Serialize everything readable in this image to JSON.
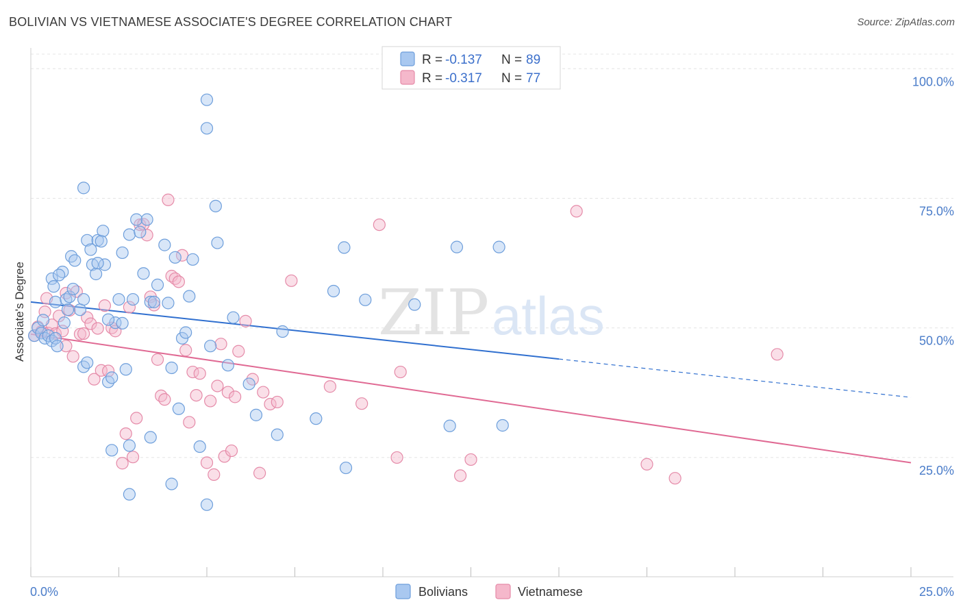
{
  "header": {
    "title": "BOLIVIAN VS VIETNAMESE ASSOCIATE'S DEGREE CORRELATION CHART",
    "source": "Source: ZipAtlas.com"
  },
  "watermark": {
    "zip": "ZIP",
    "atlas": "atlas"
  },
  "colors": {
    "bolivians_fill": "#a9c8f0",
    "bolivians_stroke": "#6d9edb",
    "bolivians_line": "#2f6fcf",
    "vietnamese_fill": "#f5b8cb",
    "vietnamese_stroke": "#e58aa8",
    "vietnamese_line": "#e06993",
    "axis_label": "#4a7cc9"
  },
  "legend": {
    "rows": [
      {
        "r_label": "R = ",
        "r_value": "-0.137",
        "n_label": "N = ",
        "n_value": "89"
      },
      {
        "r_label": "R = ",
        "r_value": "-0.317",
        "n_label": "N = ",
        "n_value": "77"
      }
    ]
  },
  "bottom_legend": {
    "items": [
      "Bolivians",
      "Vietnamese"
    ]
  },
  "chart_data": {
    "type": "scatter",
    "title": "BOLIVIAN VS VIETNAMESE ASSOCIATE'S DEGREE CORRELATION CHART",
    "xlabel": "",
    "ylabel": "Associate's Degree",
    "xlim": [
      0,
      25
    ],
    "ylim": [
      2,
      104
    ],
    "x_tick_labels": [
      "0.0%",
      "25.0%"
    ],
    "y_ticks": [
      25,
      50,
      75,
      100
    ],
    "y_tick_labels": [
      "25.0%",
      "50.0%",
      "75.0%",
      "100.0%"
    ],
    "grid": true,
    "legend_position": "top-center",
    "series": [
      {
        "name": "Bolivians",
        "r": -0.137,
        "n": 89,
        "trend": {
          "x0": 0,
          "y0": 55.0,
          "x1": 15.0,
          "y1": 44.0,
          "dash_x1": 25.0,
          "dash_y1": 36.6
        },
        "points": [
          [
            0.1,
            48.5
          ],
          [
            0.2,
            50.0
          ],
          [
            0.3,
            49.0
          ],
          [
            0.4,
            48.0
          ],
          [
            0.5,
            48.5
          ],
          [
            0.6,
            47.5
          ],
          [
            0.7,
            48.0
          ],
          [
            0.35,
            51.5
          ],
          [
            0.6,
            59.5
          ],
          [
            0.65,
            58.0
          ],
          [
            0.9,
            60.8
          ],
          [
            0.8,
            60.2
          ],
          [
            0.75,
            46.5
          ],
          [
            0.7,
            55.0
          ],
          [
            0.95,
            51.0
          ],
          [
            1.0,
            55.5
          ],
          [
            1.05,
            53.5
          ],
          [
            1.1,
            56.0
          ],
          [
            1.2,
            57.5
          ],
          [
            1.15,
            63.8
          ],
          [
            1.25,
            63.0
          ],
          [
            1.4,
            53.5
          ],
          [
            1.5,
            55.5
          ],
          [
            1.6,
            66.9
          ],
          [
            1.7,
            65.1
          ],
          [
            1.75,
            62.2
          ],
          [
            1.85,
            60.4
          ],
          [
            1.9,
            66.9
          ],
          [
            2.05,
            68.7
          ],
          [
            2.0,
            66.7
          ],
          [
            2.1,
            62.2
          ],
          [
            2.6,
            64.5
          ],
          [
            2.2,
            39.6
          ],
          [
            2.3,
            40.4
          ],
          [
            2.4,
            51.0
          ],
          [
            2.5,
            55.5
          ],
          [
            2.6,
            50.9
          ],
          [
            2.7,
            42.0
          ],
          [
            2.8,
            68.0
          ],
          [
            2.9,
            55.5
          ],
          [
            3.0,
            70.9
          ],
          [
            3.1,
            68.5
          ],
          [
            3.2,
            60.5
          ],
          [
            3.3,
            70.9
          ],
          [
            3.4,
            55.0
          ],
          [
            3.5,
            55.0
          ],
          [
            3.6,
            58.3
          ],
          [
            3.8,
            66.0
          ],
          [
            3.9,
            54.8
          ],
          [
            4.0,
            42.3
          ],
          [
            4.1,
            63.6
          ],
          [
            4.2,
            34.4
          ],
          [
            4.3,
            48.0
          ],
          [
            4.4,
            49.1
          ],
          [
            4.5,
            56.1
          ],
          [
            4.6,
            63.2
          ],
          [
            4.8,
            27.1
          ],
          [
            5.0,
            88.5
          ],
          [
            5.1,
            46.5
          ],
          [
            5.25,
            73.5
          ],
          [
            5.3,
            66.4
          ],
          [
            5.6,
            42.8
          ],
          [
            5.75,
            52.0
          ],
          [
            6.2,
            39.2
          ],
          [
            6.4,
            33.2
          ],
          [
            7.0,
            29.4
          ],
          [
            7.15,
            49.3
          ],
          [
            8.1,
            32.5
          ],
          [
            8.6,
            57.1
          ],
          [
            8.9,
            65.5
          ],
          [
            8.95,
            23.0
          ],
          [
            9.5,
            55.4
          ],
          [
            10.9,
            54.5
          ],
          [
            11.9,
            31.1
          ],
          [
            12.1,
            65.6
          ],
          [
            13.3,
            65.6
          ],
          [
            13.4,
            31.2
          ],
          [
            4.0,
            19.9
          ],
          [
            5.0,
            15.9
          ],
          [
            2.8,
            17.9
          ],
          [
            2.8,
            27.3
          ],
          [
            2.3,
            26.4
          ],
          [
            3.4,
            28.9
          ],
          [
            1.5,
            42.5
          ],
          [
            1.6,
            43.3
          ],
          [
            1.9,
            62.5
          ],
          [
            2.2,
            51.6
          ],
          [
            5.0,
            94.0
          ],
          [
            1.5,
            77.0
          ]
        ]
      },
      {
        "name": "Vietnamese",
        "r": -0.317,
        "n": 77,
        "trend": {
          "x0": 0,
          "y0": 48.8,
          "x1": 25.0,
          "y1": 24.0
        },
        "points": [
          [
            0.1,
            48.5
          ],
          [
            0.2,
            50.2
          ],
          [
            0.3,
            49.3
          ],
          [
            0.4,
            53.1
          ],
          [
            0.45,
            55.7
          ],
          [
            0.5,
            49.0
          ],
          [
            0.6,
            50.6
          ],
          [
            0.7,
            48.9
          ],
          [
            0.8,
            52.3
          ],
          [
            0.9,
            49.4
          ],
          [
            1.0,
            56.7
          ],
          [
            1.1,
            53.4
          ],
          [
            1.2,
            44.5
          ],
          [
            1.3,
            57.0
          ],
          [
            1.4,
            48.8
          ],
          [
            1.5,
            48.9
          ],
          [
            1.6,
            52.0
          ],
          [
            1.7,
            50.8
          ],
          [
            1.8,
            40.1
          ],
          [
            1.9,
            49.9
          ],
          [
            2.0,
            41.8
          ],
          [
            2.1,
            54.3
          ],
          [
            2.2,
            41.7
          ],
          [
            2.3,
            50.0
          ],
          [
            2.4,
            49.4
          ],
          [
            2.6,
            23.9
          ],
          [
            2.7,
            29.6
          ],
          [
            2.8,
            54.0
          ],
          [
            2.9,
            25.1
          ],
          [
            3.0,
            32.6
          ],
          [
            3.1,
            69.9
          ],
          [
            3.2,
            70.0
          ],
          [
            3.3,
            67.9
          ],
          [
            3.4,
            56.0
          ],
          [
            3.5,
            54.4
          ],
          [
            3.6,
            43.9
          ],
          [
            3.7,
            36.9
          ],
          [
            3.8,
            36.2
          ],
          [
            3.9,
            74.7
          ],
          [
            4.0,
            60.0
          ],
          [
            4.1,
            59.5
          ],
          [
            4.2,
            58.9
          ],
          [
            4.3,
            64.0
          ],
          [
            4.4,
            45.7
          ],
          [
            4.5,
            31.8
          ],
          [
            4.6,
            41.5
          ],
          [
            4.7,
            37.0
          ],
          [
            4.8,
            41.2
          ],
          [
            5.0,
            24.0
          ],
          [
            5.1,
            35.9
          ],
          [
            5.2,
            21.7
          ],
          [
            5.3,
            38.8
          ],
          [
            5.4,
            46.9
          ],
          [
            5.5,
            25.2
          ],
          [
            5.6,
            37.6
          ],
          [
            5.7,
            26.3
          ],
          [
            5.8,
            36.7
          ],
          [
            5.9,
            45.5
          ],
          [
            6.1,
            51.3
          ],
          [
            6.3,
            40.1
          ],
          [
            6.5,
            22.0
          ],
          [
            6.6,
            37.6
          ],
          [
            6.8,
            35.3
          ],
          [
            7.0,
            35.7
          ],
          [
            7.4,
            59.1
          ],
          [
            8.5,
            38.7
          ],
          [
            9.4,
            35.4
          ],
          [
            9.9,
            69.9
          ],
          [
            10.4,
            25.0
          ],
          [
            10.5,
            41.5
          ],
          [
            12.2,
            21.5
          ],
          [
            12.5,
            24.6
          ],
          [
            15.5,
            72.5
          ],
          [
            17.5,
            23.7
          ],
          [
            18.3,
            21.0
          ],
          [
            21.2,
            44.9
          ],
          [
            1.0,
            46.5
          ]
        ]
      }
    ]
  }
}
